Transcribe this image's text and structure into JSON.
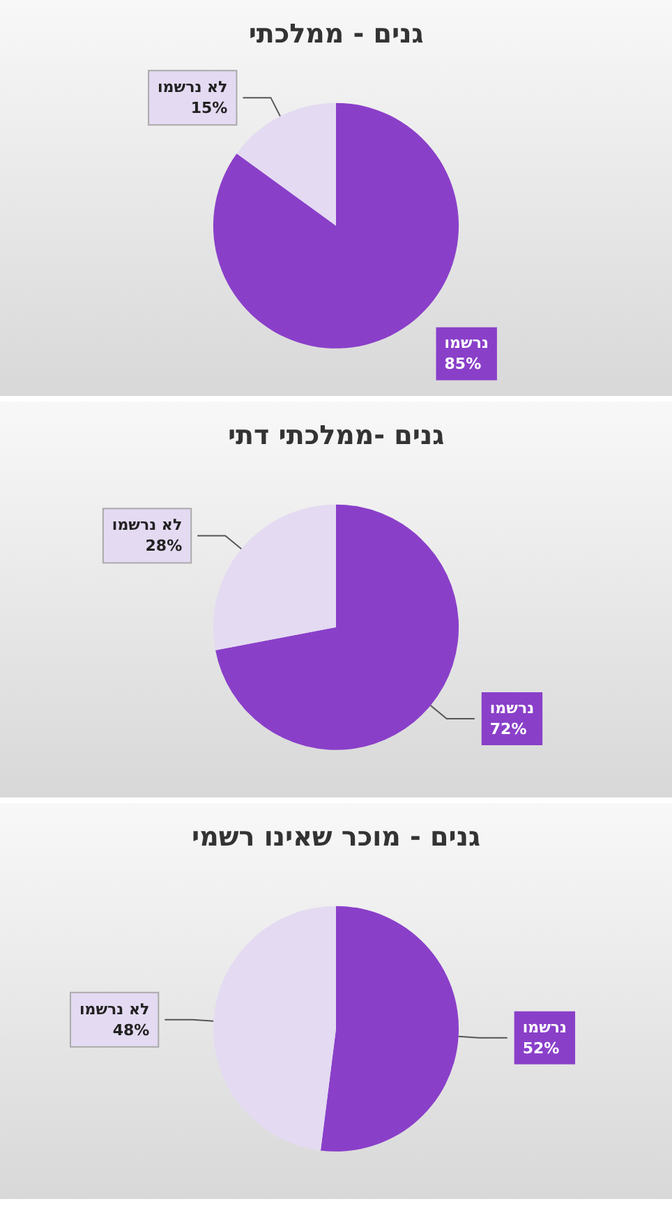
{
  "chart_data": [
    {
      "type": "pie",
      "title": "גנים - ממלכתי",
      "categories": [
        "נרשמו",
        "לא נרשמו"
      ],
      "values": [
        85,
        15
      ],
      "value_labels": [
        "85%",
        "15%"
      ],
      "colors": [
        "#8a3fc9",
        "#e4daf2"
      ],
      "legend": false
    },
    {
      "type": "pie",
      "title": "גנים -ממלכתי דתי",
      "categories": [
        "נרשמו",
        "לא נרשמו"
      ],
      "values": [
        72,
        28
      ],
      "value_labels": [
        "72%",
        "28%"
      ],
      "colors": [
        "#8a3fc9",
        "#e4daf2"
      ],
      "legend": false
    },
    {
      "type": "pie",
      "title": "גנים - מוכר שאינו רשמי",
      "categories": [
        "נרשמו",
        "לא נרשמו"
      ],
      "values": [
        52,
        48
      ],
      "value_labels": [
        "52%",
        "48%"
      ],
      "colors": [
        "#8a3fc9",
        "#e4daf2"
      ],
      "legend": false
    }
  ]
}
